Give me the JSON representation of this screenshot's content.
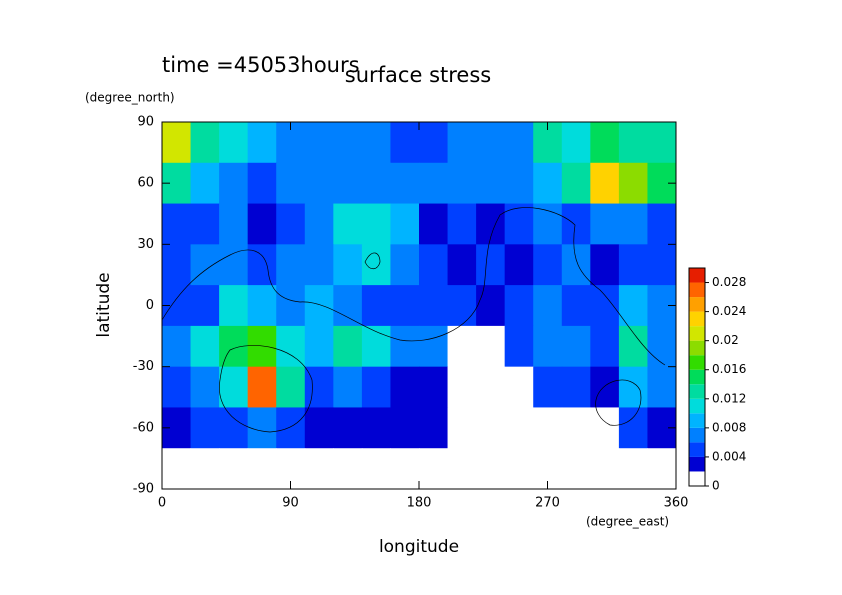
{
  "chart_data": {
    "type": "contour",
    "time_label": "time =45053hours",
    "title": "surface stress",
    "xlabel": "longitude",
    "ylabel": "latitude",
    "xunit": "(degree_east)",
    "yunit": "(degree_north)",
    "xlim": [
      0,
      360
    ],
    "ylim": [
      -90,
      90
    ],
    "xticks": [
      0,
      90,
      180,
      270,
      360
    ],
    "yticks": [
      -90,
      -60,
      -30,
      0,
      30,
      60,
      90
    ],
    "levels": [
      0,
      0.002,
      0.004,
      0.006,
      0.008,
      0.01,
      0.012,
      0.014,
      0.016,
      0.018,
      0.02,
      0.022,
      0.024,
      0.026,
      0.028,
      0.03
    ],
    "colors": [
      "#ffffff",
      "#0000d2",
      "#0040ff",
      "#0080ff",
      "#00b4ff",
      "#00dcdc",
      "#00dca0",
      "#00dc5a",
      "#32dc00",
      "#8cdc00",
      "#d2e600",
      "#ffd200",
      "#ffa000",
      "#ff6400",
      "#e61e00"
    ],
    "cticks": [
      0,
      0.004,
      0.008,
      0.012,
      0.016,
      0.02,
      0.024,
      0.028
    ],
    "z": [
      [
        0.02,
        0.012,
        0.01,
        0.008,
        0.006,
        0.006,
        0.006,
        0.006,
        0.004,
        0.004,
        0.006,
        0.006,
        0.006,
        0.012,
        0.01,
        0.014,
        0.012,
        0.012
      ],
      [
        0.012,
        0.008,
        0.006,
        0.004,
        0.006,
        0.006,
        0.006,
        0.006,
        0.006,
        0.006,
        0.006,
        0.006,
        0.006,
        0.008,
        0.012,
        0.022,
        0.018,
        0.014
      ],
      [
        0.004,
        0.004,
        0.006,
        0.002,
        0.004,
        0.006,
        0.01,
        0.01,
        0.008,
        0.002,
        0.004,
        0.002,
        0.004,
        0.006,
        0.004,
        0.006,
        0.006,
        0.004
      ],
      [
        0.004,
        0.006,
        0.006,
        0.004,
        0.006,
        0.006,
        0.008,
        0.01,
        0.006,
        0.004,
        0.002,
        0.004,
        0.002,
        0.004,
        0.006,
        0.002,
        0.004,
        0.004
      ],
      [
        0.004,
        0.004,
        0.01,
        0.008,
        0.006,
        0.008,
        0.006,
        0.004,
        0.004,
        0.004,
        0.004,
        0.002,
        0.004,
        0.006,
        0.004,
        0.004,
        0.008,
        0.006
      ],
      [
        0.006,
        0.01,
        0.014,
        0.016,
        0.01,
        0.008,
        0.012,
        0.01,
        0.006,
        0.006,
        0,
        0,
        0.004,
        0.006,
        0.006,
        0.004,
        0.012,
        0.006
      ],
      [
        0.004,
        0.006,
        0.01,
        0.026,
        0.012,
        0.004,
        0.006,
        0.004,
        0.002,
        0.002,
        0,
        0,
        0,
        0.004,
        0.004,
        0.002,
        0.008,
        0.006
      ],
      [
        0.002,
        0.004,
        0.004,
        0.006,
        0.004,
        0.002,
        0.002,
        0.002,
        0.002,
        0.002,
        0,
        0,
        0,
        0,
        0,
        0,
        0.004,
        0.002
      ],
      [
        0,
        0,
        0,
        0,
        0,
        0,
        0,
        0,
        0,
        0,
        0,
        0,
        0,
        0,
        0,
        0,
        0,
        0
      ]
    ]
  }
}
